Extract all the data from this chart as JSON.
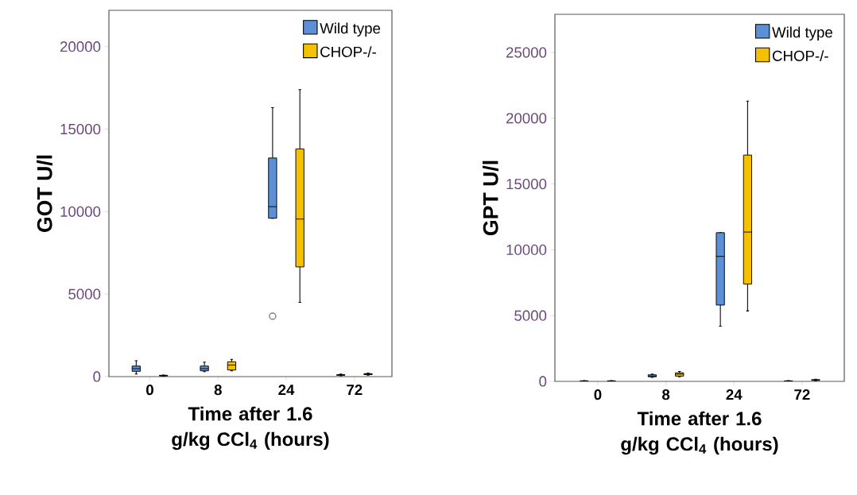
{
  "chart_data": [
    {
      "type": "box",
      "categories": [
        "0",
        "8",
        "24",
        "72"
      ],
      "xlabel": "Time after 1.6 g/kg CCl$_{4}$ (hours)",
      "ylabel": "GOT U/l",
      "ylim": [
        0,
        22200
      ],
      "yticks": [
        0,
        5000,
        10000,
        15000,
        20000
      ],
      "legend": "top right",
      "series": [
        {
          "name": "Wild type",
          "color": "#5b8fd6",
          "boxes": [
            {
              "low": 160,
              "q1": 320,
              "median": 480,
              "q3": 640,
              "high": 960
            },
            {
              "low": 300,
              "q1": 350,
              "median": 480,
              "q3": 640,
              "high": 880
            },
            {
              "low": 9600,
              "q1": 9600,
              "median": 10300,
              "q3": 13250,
              "high": 16300,
              "outliers": [
                3660
              ]
            },
            {
              "low": 50,
              "q1": 80,
              "median": 100,
              "q3": 120,
              "high": 150
            }
          ]
        },
        {
          "name": "CHOP-/-",
          "color": "#f5c000",
          "boxes": [
            {
              "low": 20,
              "q1": 40,
              "median": 60,
              "q3": 80,
              "high": 100
            },
            {
              "low": 350,
              "q1": 400,
              "median": 700,
              "q3": 900,
              "high": 1050
            },
            {
              "low": 4500,
              "q1": 6650,
              "median": 9550,
              "q3": 13800,
              "high": 17400
            },
            {
              "low": 80,
              "q1": 120,
              "median": 150,
              "q3": 180,
              "high": 220
            }
          ]
        }
      ]
    },
    {
      "type": "box",
      "categories": [
        "0",
        "8",
        "24",
        "72"
      ],
      "xlabel": "Time after 1.6 g/kg CCl$_{4}$ (hours)",
      "ylabel": "GPT U/l",
      "ylim": [
        0,
        27900
      ],
      "yticks": [
        0,
        5000,
        10000,
        15000,
        20000,
        25000
      ],
      "legend": "top right",
      "series": [
        {
          "name": "Wild type",
          "color": "#5b8fd6",
          "boxes": [
            {
              "low": 10,
              "q1": 20,
              "median": 30,
              "q3": 40,
              "high": 50
            },
            {
              "low": 300,
              "q1": 350,
              "median": 400,
              "q3": 500,
              "high": 550
            },
            {
              "low": 4200,
              "q1": 5800,
              "median": 9500,
              "q3": 11300,
              "high": 11300
            },
            {
              "low": 10,
              "q1": 20,
              "median": 30,
              "q3": 40,
              "high": 50
            }
          ]
        },
        {
          "name": "CHOP-/-",
          "color": "#f5c000",
          "boxes": [
            {
              "low": 10,
              "q1": 20,
              "median": 30,
              "q3": 40,
              "high": 50
            },
            {
              "low": 350,
              "q1": 400,
              "median": 550,
              "q3": 650,
              "high": 750
            },
            {
              "low": 5350,
              "q1": 7400,
              "median": 11350,
              "q3": 17200,
              "high": 21300
            },
            {
              "low": 50,
              "q1": 80,
              "median": 100,
              "q3": 130,
              "high": 160
            }
          ]
        }
      ]
    }
  ]
}
